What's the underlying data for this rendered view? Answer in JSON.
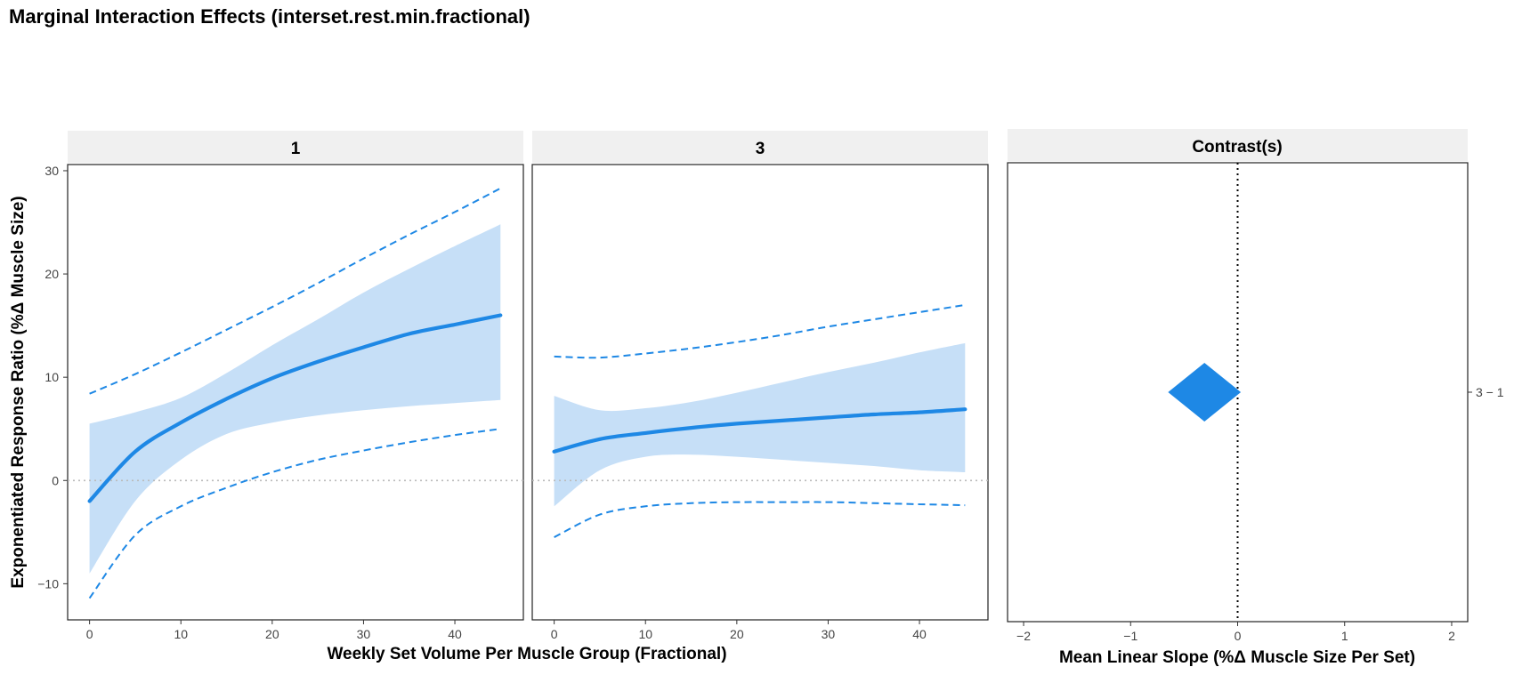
{
  "title": "Marginal Interaction Effects (interset.rest.min.fractional)",
  "colors": {
    "line": "#1E88E5",
    "band": "#C6DFF7",
    "strip": "#F0F0F0",
    "ref": "#BBBBBB"
  },
  "chart_data": [
    {
      "type": "line",
      "facet": "1",
      "xlabel": "Weekly Set Volume Per Muscle Group (Fractional)",
      "ylabel": "Exponentiated Response Ratio (%Δ Muscle Size)",
      "xlim": [
        -2.4,
        47.5
      ],
      "ylim": [
        -13.5,
        30.6
      ],
      "x_ticks": [
        "0",
        "10",
        "20",
        "30",
        "40"
      ],
      "y_ticks": [
        "−10",
        "0",
        "10",
        "20",
        "30"
      ],
      "reference_line_y": 0,
      "x": [
        0,
        5,
        10,
        15,
        20,
        25,
        30,
        35,
        40,
        45
      ],
      "estimate": [
        -2.0,
        2.8,
        5.6,
        7.9,
        9.9,
        11.5,
        12.9,
        14.2,
        15.1,
        16.0
      ],
      "ci_lower": [
        -9.0,
        -2.0,
        2.0,
        4.5,
        5.6,
        6.3,
        6.8,
        7.2,
        7.5,
        7.8
      ],
      "ci_upper": [
        5.5,
        6.6,
        8.0,
        10.4,
        13.1,
        15.6,
        18.2,
        20.5,
        22.7,
        24.8
      ],
      "pi_lower": [
        -11.4,
        -5.3,
        -2.5,
        -0.7,
        0.8,
        2.0,
        2.9,
        3.7,
        4.4,
        5.0
      ],
      "pi_upper": [
        8.4,
        10.3,
        12.4,
        14.6,
        16.8,
        19.1,
        21.5,
        23.8,
        26.0,
        28.3
      ],
      "band_note_none": ""
    },
    {
      "type": "line",
      "facet": "3",
      "xlim": [
        -2.4,
        47.5
      ],
      "ylim": [
        -13.5,
        30.6
      ],
      "x_ticks": [
        "0",
        "10",
        "20",
        "30",
        "40"
      ],
      "reference_line_y": 0,
      "x": [
        0,
        5,
        10,
        15,
        20,
        25,
        30,
        35,
        40,
        45
      ],
      "estimate": [
        2.8,
        4.0,
        4.6,
        5.1,
        5.5,
        5.8,
        6.1,
        6.4,
        6.6,
        6.9
      ],
      "ci_lower": [
        -2.5,
        1.0,
        2.3,
        2.5,
        2.3,
        2.0,
        1.7,
        1.4,
        1.0,
        0.8
      ],
      "ci_upper": [
        8.2,
        6.8,
        7.0,
        7.6,
        8.5,
        9.5,
        10.5,
        11.4,
        12.4,
        13.3
      ],
      "pi_lower": [
        -5.5,
        -3.3,
        -2.5,
        -2.2,
        -2.1,
        -2.1,
        -2.1,
        -2.2,
        -2.3,
        -2.4
      ],
      "pi_upper": [
        12.0,
        11.9,
        12.3,
        12.8,
        13.4,
        14.1,
        14.9,
        15.6,
        16.3,
        17.0
      ]
    },
    {
      "type": "scatter",
      "facet": "Contrast(s)",
      "xlabel": "Mean Linear Slope (%Δ Muscle Size Per Set)",
      "xlim": [
        -2.15,
        2.15
      ],
      "x_ticks": [
        "−2",
        "−1",
        "0",
        "1",
        "2"
      ],
      "reference_line_x": 0,
      "categories": [
        "3 − 1"
      ],
      "values": [
        -0.31
      ],
      "interval": [
        -0.65,
        0.03
      ]
    }
  ]
}
